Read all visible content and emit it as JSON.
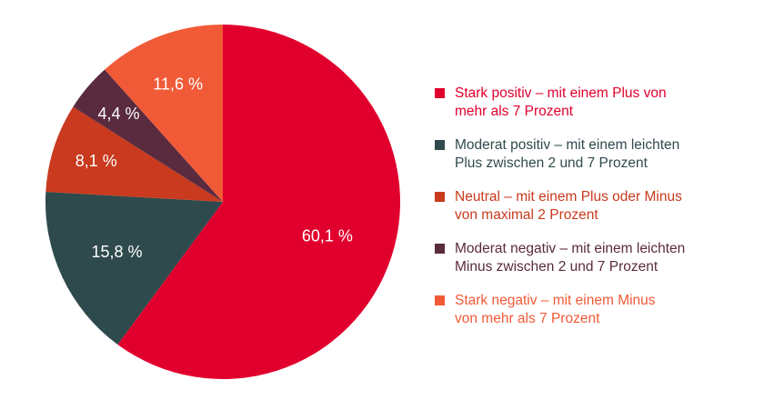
{
  "chart_data": {
    "type": "pie",
    "slices": [
      {
        "label": "Stark positiv – mit einem Plus von mehr als 7 Prozent",
        "legend_lines": [
          "Stark positiv – mit einem Plus von",
          "mehr als 7 Prozent"
        ],
        "value": 60.1,
        "value_label": "60,1 %",
        "color": "#e1002d"
      },
      {
        "label": "Moderat positiv – mit einem leichten Plus zwischen 2 und 7 Prozent",
        "legend_lines": [
          "Moderat positiv – mit einem leichten",
          "Plus zwischen 2 und 7 Prozent"
        ],
        "value": 15.8,
        "value_label": "15,8 %",
        "color": "#2f4a4c"
      },
      {
        "label": "Neutral – mit einem Plus oder Minus von maximal 2 Prozent",
        "legend_lines": [
          "Neutral – mit einem Plus oder Minus",
          "von maximal 2 Prozent"
        ],
        "value": 8.1,
        "value_label": "8,1 %",
        "color": "#c93a1e"
      },
      {
        "label": "Moderat negativ – mit einem leichten Minus zwischen 2 und 7 Prozent",
        "legend_lines": [
          "Moderat negativ – mit einem leichten",
          "Minus zwischen 2 und 7 Prozent"
        ],
        "value": 4.4,
        "value_label": "4,4 %",
        "color": "#5a2a3e"
      },
      {
        "label": "Stark negativ – mit einem Minus von mehr als 7 Prozent",
        "legend_lines": [
          "Stark negativ – mit einem Minus",
          "von mehr als 7 Prozent"
        ],
        "value": 11.6,
        "value_label": "11,6 %",
        "color": "#f15a37"
      }
    ],
    "start_angle_deg": 0,
    "direction": "clockwise",
    "legend_position": "right",
    "legend_text_colors": [
      "#e1002d",
      "#2f4a4c",
      "#c93a1e",
      "#5a2a3e",
      "#f15a37"
    ]
  }
}
